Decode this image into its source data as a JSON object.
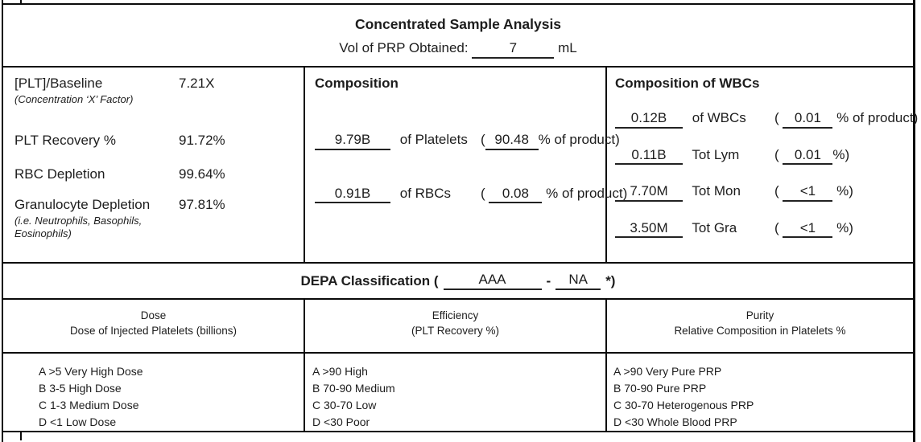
{
  "header": {
    "title": "Concentrated Sample Analysis",
    "vol_label": "Vol of PRP Obtained:",
    "vol_value": "7",
    "vol_unit": "mL"
  },
  "metrics": {
    "rows": [
      {
        "label": "[PLT]/Baseline",
        "note": "(Concentration ‘X’  Factor)",
        "value": "7.21X"
      },
      {
        "label": "PLT Recovery %",
        "value": "91.72%"
      },
      {
        "label": "RBC Depletion",
        "value": "99.64%"
      },
      {
        "label": "Granulocyte Depletion",
        "value": "97.81%",
        "note": "(i.e. Neutrophils, Basophils, Eosinophils)"
      }
    ]
  },
  "composition": {
    "title": "Composition",
    "rows": [
      {
        "amount": "9.79B",
        "label": "of Platelets",
        "open": "(",
        "pct": "90.48",
        "suffix": "% of product)"
      },
      {
        "amount": "0.91B",
        "label": "of RBCs",
        "open": "(",
        "pct": "0.08",
        "suffix": "% of product)"
      }
    ]
  },
  "wbc": {
    "title": "Composition of WBCs",
    "rows": [
      {
        "amount": "0.12B",
        "label": "of WBCs",
        "open": "(",
        "pct": "0.01",
        "suffix": "% of product)"
      },
      {
        "amount": "0.11B",
        "label": "Tot Lym",
        "open": "(",
        "pct": "0.01",
        "suffix": "%)"
      },
      {
        "amount": "7.70M",
        "label": "Tot Mon",
        "open": "(",
        "pct": "<1",
        "suffix": "%)"
      },
      {
        "amount": "3.50M",
        "label": "Tot Gra",
        "open": "(",
        "pct": "<1",
        "suffix": "%)"
      }
    ]
  },
  "depa": {
    "label": "DEPA Classification (",
    "code1": "AAA",
    "separator": "-",
    "code2": "NA",
    "suffix": "*)"
  },
  "classification": {
    "columns": [
      {
        "title": "Dose",
        "subtitle": "Dose of Injected Platelets (billions)",
        "items": [
          "A >5 Very High Dose",
          "B 3-5 High Dose",
          "C 1-3 Medium Dose",
          "D <1 Low Dose"
        ]
      },
      {
        "title": "Efficiency",
        "subtitle": "(PLT Recovery %)",
        "items": [
          "A >90 High",
          "B 70-90 Medium",
          "C 30-70 Low",
          "D <30 Poor"
        ]
      },
      {
        "title": "Purity",
        "subtitle": "Relative Composition in Platelets %",
        "items": [
          "A >90 Very Pure PRP",
          "B 70-90 Pure PRP",
          "C 30-70 Heterogenous PRP",
          "D <30 Whole Blood PRP"
        ]
      }
    ]
  }
}
